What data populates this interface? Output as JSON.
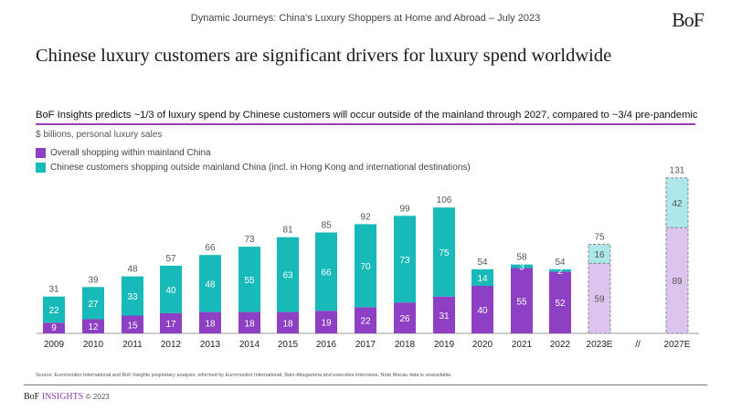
{
  "header": {
    "report_title": "Dynamic Journeys: China's Luxury Shoppers at Home and Abroad – July 2023",
    "logo": "BoF"
  },
  "title": "Chinese luxury customers are significant drivers for luxury spend worldwide",
  "subtitle": "BoF Insights predicts ~1/3 of luxury spend by Chinese customers will occur outside of the mainland through 2027, compared to ~3/4 pre-pandemic",
  "unit_label": "$ billions, personal luxury sales",
  "chart_data": {
    "type": "bar",
    "stacked": true,
    "categories": [
      "2009",
      "2010",
      "2011",
      "2012",
      "2013",
      "2014",
      "2015",
      "2016",
      "2017",
      "2018",
      "2019",
      "2020",
      "2021",
      "2022",
      "2023E",
      "2027E"
    ],
    "axis_break_label": "//",
    "estimated_categories": [
      "2023E",
      "2027E"
    ],
    "series": [
      {
        "name": "Overall shopping within mainland China",
        "color": "#8e40c4",
        "estimate_color": "#dcc4ee",
        "values": [
          9,
          12,
          15,
          17,
          18,
          18,
          18,
          19,
          22,
          26,
          31,
          40,
          55,
          52,
          59,
          89
        ]
      },
      {
        "name": "Chinese customers shopping outside mainland China (incl. in Hong Kong and international destinations)",
        "color": "#17b9b9",
        "estimate_color": "#aee7ea",
        "values": [
          22,
          27,
          33,
          40,
          48,
          55,
          63,
          66,
          70,
          73,
          75,
          14,
          3,
          2,
          16,
          42
        ]
      }
    ],
    "totals": [
      31,
      39,
      48,
      57,
      66,
      73,
      81,
      85,
      92,
      99,
      106,
      54,
      58,
      54,
      75,
      131
    ],
    "legend_position": "top-left",
    "grid": false
  },
  "source": "Source: Euromonitor International and BoF Insights proprietary analysis; informed by Euromonitor International, Bain-Altagamma and executive interviews. Note Macau data is unavailable.",
  "footer": {
    "brand": "BoF",
    "brand_suffix": "INSIGHTS",
    "copyright": "© 2023"
  }
}
